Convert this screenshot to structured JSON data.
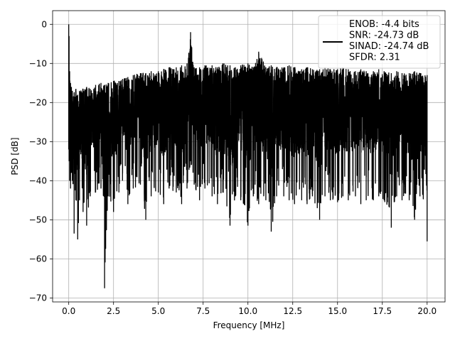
{
  "chart_data": {
    "type": "line",
    "xlabel": "Frequency [MHz]",
    "ylabel": "PSD [dB]",
    "xlim": [
      -0.9,
      21.0
    ],
    "ylim": [
      -71.0,
      3.5
    ],
    "xticks": [
      0.0,
      2.5,
      5.0,
      7.5,
      10.0,
      12.5,
      15.0,
      17.5,
      20.0
    ],
    "xtick_labels": [
      "0.0",
      "2.5",
      "5.0",
      "7.5",
      "10.0",
      "12.5",
      "15.0",
      "17.5",
      "20.0"
    ],
    "yticks": [
      0,
      -10,
      -20,
      -30,
      -40,
      -50,
      -60,
      -70
    ],
    "ytick_labels": [
      "0",
      "−10",
      "−20",
      "−30",
      "−40",
      "−50",
      "−60",
      "−70"
    ],
    "grid": true,
    "legend_position": "top-right",
    "series": [
      {
        "name": "ENOB: -4.4 bits\nSNR: -24.73 dB\nSINAD: -24.74 dB\nSFDR: 2.31",
        "color": "#000000",
        "x": [
          0.0,
          0.02,
          0.05,
          0.1,
          0.15,
          0.2,
          0.3,
          0.4,
          0.5,
          0.6,
          0.8,
          1.0,
          1.2,
          1.5,
          1.8,
          2.0,
          2.2,
          2.5,
          2.8,
          3.0,
          3.3,
          3.6,
          4.0,
          4.3,
          4.6,
          5.0,
          5.3,
          5.6,
          6.0,
          6.3,
          6.6,
          6.8,
          7.0,
          7.3,
          7.6,
          8.0,
          8.3,
          8.6,
          9.0,
          9.3,
          9.6,
          10.0,
          10.3,
          10.6,
          11.0,
          11.3,
          11.6,
          12.0,
          12.3,
          12.6,
          13.0,
          13.3,
          13.6,
          14.0,
          14.3,
          14.6,
          15.0,
          15.3,
          15.6,
          16.0,
          16.3,
          16.6,
          17.0,
          17.3,
          17.6,
          18.0,
          18.3,
          18.6,
          19.0,
          19.3,
          19.6,
          20.0
        ],
        "upper": [
          0.0,
          -3.0,
          -12.0,
          -15.0,
          -16.0,
          -17.0,
          -17.5,
          -16.5,
          -18.0,
          -17.0,
          -16.5,
          -16.0,
          -16.5,
          -15.5,
          -15.0,
          -15.5,
          -15.0,
          -14.5,
          -14.5,
          -14.0,
          -13.5,
          -13.0,
          -12.5,
          -12.5,
          -12.0,
          -12.0,
          -11.5,
          -11.0,
          -11.0,
          -10.5,
          -10.0,
          -2.0,
          -11.0,
          -11.0,
          -10.5,
          -10.5,
          -11.0,
          -10.0,
          -10.5,
          -11.0,
          -10.5,
          -10.0,
          -11.0,
          -7.0,
          -11.0,
          -10.5,
          -11.0,
          -11.0,
          -10.5,
          -11.0,
          -11.5,
          -11.0,
          -11.5,
          -11.5,
          -11.0,
          -11.5,
          -11.5,
          -11.0,
          -11.5,
          -12.0,
          -11.5,
          -12.0,
          -12.0,
          -11.5,
          -12.0,
          -12.5,
          -12.0,
          -12.5,
          -12.5,
          -12.0,
          -12.5,
          -13.0
        ],
        "lower": [
          -32.0,
          -35.0,
          -40.0,
          -42.0,
          -38.0,
          -40.0,
          -53.5,
          -45.0,
          -55.0,
          -45.0,
          -48.0,
          -51.5,
          -44.0,
          -43.0,
          -42.0,
          -67.5,
          -44.0,
          -48.0,
          -43.0,
          -40.0,
          -46.0,
          -42.0,
          -41.0,
          -50.0,
          -44.0,
          -43.0,
          -46.0,
          -42.0,
          -43.0,
          -46.0,
          -42.0,
          -35.0,
          -41.0,
          -45.0,
          -42.0,
          -44.0,
          -46.0,
          -43.0,
          -51.5,
          -44.0,
          -45.0,
          -51.5,
          -44.0,
          -46.0,
          -45.0,
          -53.0,
          -44.0,
          -44.0,
          -45.0,
          -46.0,
          -45.0,
          -46.0,
          -44.0,
          -50.0,
          -44.0,
          -45.0,
          -45.5,
          -44.0,
          -45.0,
          -44.0,
          -46.0,
          -45.0,
          -45.0,
          -44.0,
          -45.0,
          -52.0,
          -44.0,
          -45.0,
          -45.0,
          -50.0,
          -44.0,
          -55.5
        ]
      }
    ]
  }
}
